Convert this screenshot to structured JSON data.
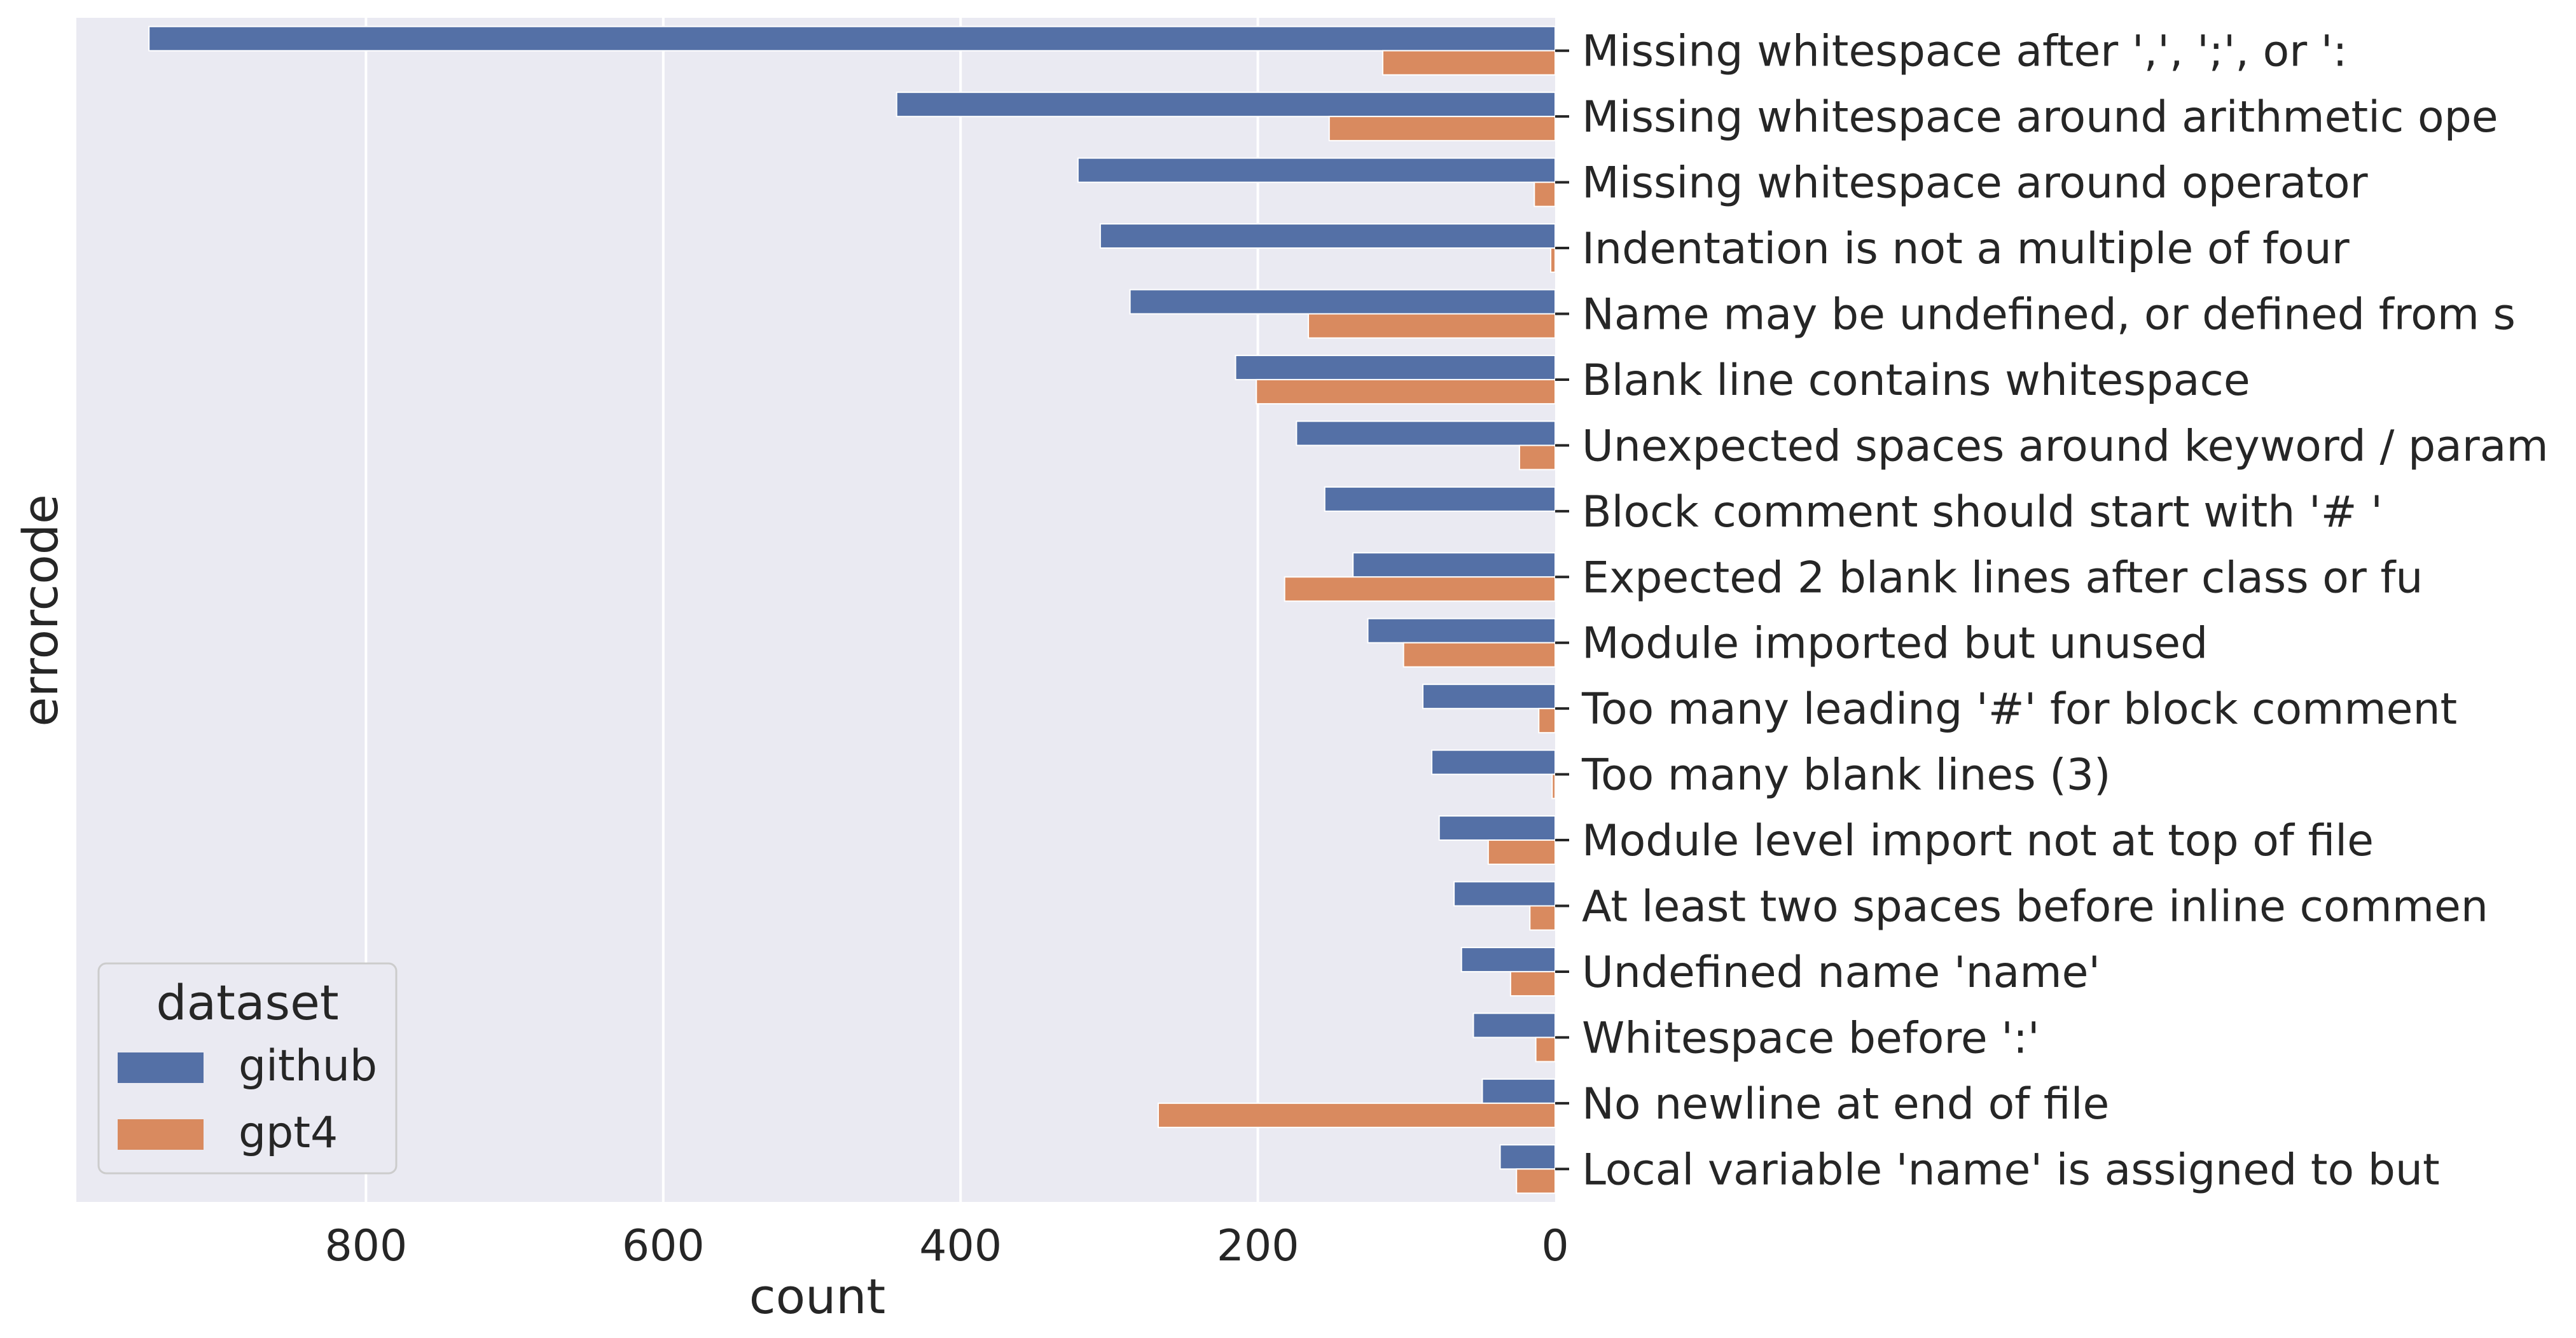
{
  "chart_data": {
    "type": "bar",
    "orientation": "horizontal",
    "x_axis_inverted": true,
    "y_axis_side": "right",
    "xlabel": "count",
    "ylabel": "errorcode",
    "xlim": [
      0,
      1000
    ],
    "xticks": [
      800,
      600,
      400,
      200,
      0
    ],
    "grid": true,
    "legend": {
      "title": "dataset",
      "placement": "lower-left"
    },
    "categories": [
      "Missing whitespace after ',', ';', or ':",
      "Missing whitespace around arithmetic ope",
      "Missing whitespace around operator",
      "Indentation is not a multiple of four",
      "Name may be undefined, or defined from s",
      "Blank line contains whitespace",
      "Unexpected spaces around keyword / param",
      "Block comment should start with '# '",
      "Expected 2 blank lines after class or fu",
      "Module imported but unused",
      "Too many leading '#' for block comment",
      "Too many blank lines (3)",
      "Module level import not at top of file",
      "At least two spaces before inline commen",
      "Undefined name 'name'",
      "Whitespace before ':'",
      "No newline at end of file",
      "Local variable 'name' is assigned to but"
    ],
    "series": [
      {
        "name": "github",
        "color": "#5470a6",
        "values": [
          946,
          443,
          321,
          306,
          286,
          215,
          174,
          155,
          136,
          126,
          89,
          83,
          78,
          68,
          63,
          55,
          49,
          37
        ]
      },
      {
        "name": "gpt4",
        "color": "#d98a5f",
        "values": [
          116,
          152,
          14,
          3,
          166,
          201,
          24,
          0,
          182,
          102,
          11,
          2,
          45,
          17,
          30,
          13,
          267,
          26
        ]
      }
    ]
  },
  "colors": {
    "plot_background": "#eaeaf2",
    "grid": "#ffffff",
    "text": "#262626"
  }
}
